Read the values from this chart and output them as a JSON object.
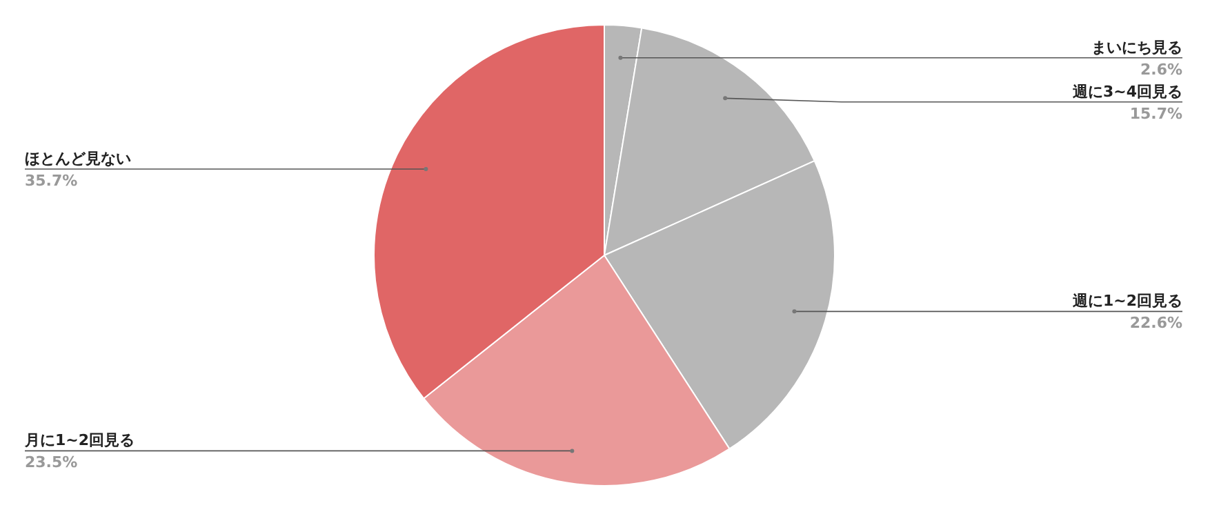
{
  "chart_data": {
    "type": "pie",
    "categories": [
      "まいにち見る",
      "週に3~4回見る",
      "週に1~2回見る",
      "月に1~2回見る",
      "ほとんど見ない"
    ],
    "values": [
      2.6,
      15.7,
      22.6,
      23.5,
      35.7
    ],
    "colors": [
      "#b7b7b7",
      "#b7b7b7",
      "#b7b7b7",
      "#ea9999",
      "#e06666"
    ],
    "value_labels": [
      "2.6%",
      "15.7%",
      "22.6%",
      "23.5%",
      "35.7%"
    ],
    "legend": false
  }
}
